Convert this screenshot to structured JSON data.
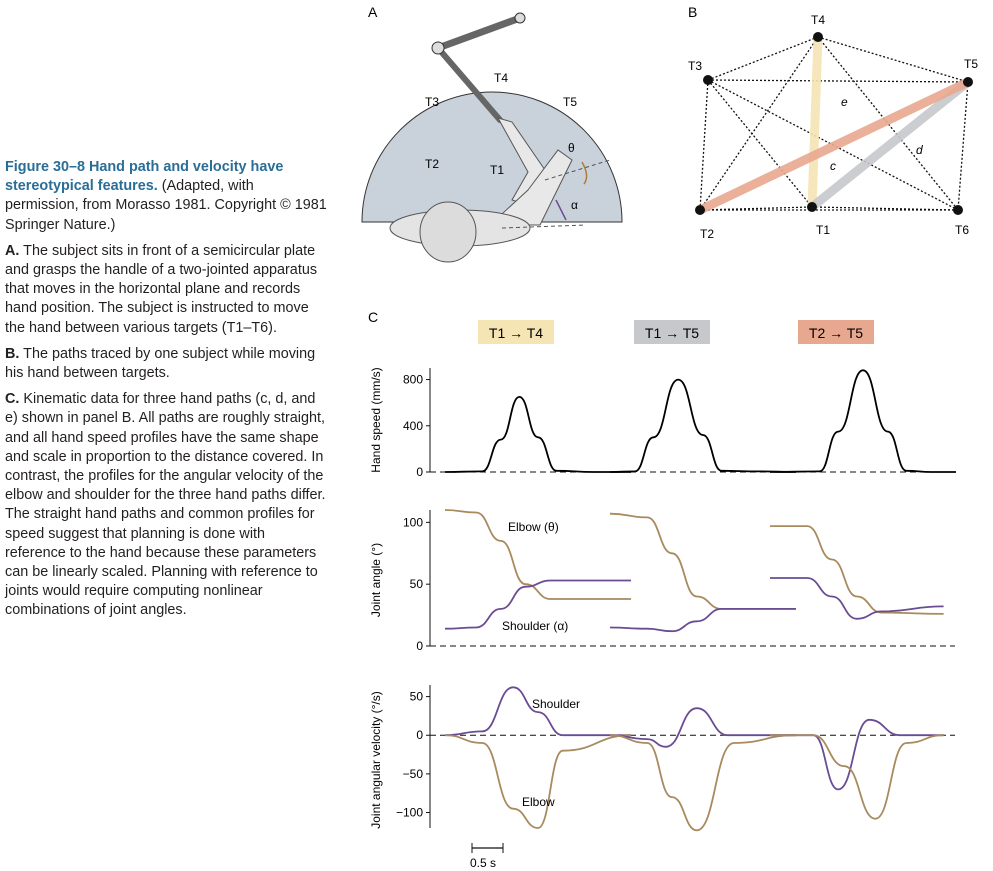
{
  "caption": {
    "figure_number": "Figure 30–8",
    "title": "Hand path and velocity have stereotypical features.",
    "source": "(Adapted, with permission, from Morasso 1981. Copyright © 1981 Springer Nature.)",
    "paragraphs": [
      {
        "label": "A.",
        "text": "The subject sits in front of a semicircular plate and grasps the handle of a two-jointed apparatus that moves in the horizontal plane and records hand position. The subject is instructed to move the hand between various targets (T1–T6)."
      },
      {
        "label": "B.",
        "text": "The paths traced by one subject while moving his hand between targets."
      },
      {
        "label": "C.",
        "text": "Kinematic data for three hand paths (c, d, and e) shown in panel B. All paths are roughly straight, and all hand speed profiles have the same shape and scale in proportion to the distance covered. In contrast, the profiles for the angular velocity of the elbow and shoulder for the three hand paths differ. The straight hand paths and common profiles for speed suggest that planning is done with reference to the hand because these parameters can be linearly scaled. Planning with reference to joints would require computing nonlinear combinations of joint angles."
      }
    ]
  },
  "panel_a": {
    "label": "A",
    "targets": [
      "T4",
      "T3",
      "T5",
      "T2",
      "T1"
    ],
    "angle_elbow": "θ",
    "angle_shoulder": "α"
  },
  "panel_b": {
    "label": "B",
    "targets": [
      "T4",
      "T3",
      "T5",
      "T2",
      "T1",
      "T6"
    ],
    "path_labels": [
      "c",
      "d",
      "e"
    ]
  },
  "panel_c": {
    "label": "C",
    "movements": [
      "T1 → T4",
      "T1 → T5",
      "T2 → T5"
    ],
    "movement_colors": [
      "#f5e4b4",
      "#c7c8cc",
      "#e8a88f"
    ],
    "series_colors": {
      "speed": "#000000",
      "elbow": "#a88a5e",
      "shoulder": "#6a4c93"
    },
    "scale_bar": "0.5 s",
    "rows": [
      {
        "ylabel": "Hand speed (mm/s)",
        "ticks": [
          0,
          400,
          800
        ],
        "ylim": [
          0,
          900
        ]
      },
      {
        "ylabel": "Joint angle (°)",
        "ticks": [
          0,
          50,
          100
        ],
        "ylim": [
          0,
          110
        ],
        "labels": [
          "Elbow (θ)",
          "Shoulder (α)"
        ]
      },
      {
        "ylabel": "Joint angular velocity (°/s)",
        "ticks": [
          50,
          0,
          -50,
          -100
        ],
        "ylim": [
          -120,
          65
        ],
        "labels": [
          "Shoulder",
          "Elbow"
        ]
      }
    ]
  },
  "chart_data": [
    {
      "type": "line",
      "xlabel": "",
      "ylabel": "Hand speed (mm/s)",
      "x_unit": "s",
      "ylim": [
        0,
        900
      ],
      "panels": [
        {
          "movement": "T1 → T4",
          "series": [
            {
              "name": "",
              "x": [
                0,
                0.3,
                0.45,
                0.6,
                0.75,
                0.9,
                1.2,
                1.5
              ],
              "y": [
                0,
                5,
                280,
                650,
                300,
                10,
                0,
                0
              ]
            }
          ]
        },
        {
          "movement": "T1 → T5",
          "series": [
            {
              "name": "",
              "x": [
                0,
                0.2,
                0.35,
                0.55,
                0.75,
                0.9,
                1.2,
                1.5
              ],
              "y": [
                0,
                5,
                300,
                800,
                320,
                10,
                5,
                0
              ]
            }
          ]
        },
        {
          "movement": "T2 → T5",
          "series": [
            {
              "name": "",
              "x": [
                0,
                0.4,
                0.55,
                0.75,
                0.95,
                1.1,
                1.3,
                1.5
              ],
              "y": [
                0,
                5,
                350,
                880,
                350,
                10,
                0,
                0
              ]
            }
          ]
        }
      ]
    },
    {
      "type": "line",
      "xlabel": "",
      "ylabel": "Joint angle (°)",
      "x_unit": "s",
      "ylim": [
        0,
        110
      ],
      "panels": [
        {
          "movement": "T1 → T4",
          "series": [
            {
              "name": "Elbow (θ)",
              "x": [
                0,
                0.25,
                0.45,
                0.65,
                0.85,
                1.5
              ],
              "y": [
                110,
                108,
                85,
                50,
                38,
                38
              ]
            },
            {
              "name": "Shoulder (α)",
              "x": [
                0,
                0.25,
                0.45,
                0.65,
                0.85,
                1.5
              ],
              "y": [
                14,
                15,
                30,
                48,
                53,
                53
              ]
            }
          ]
        },
        {
          "movement": "T1 → T5",
          "series": [
            {
              "name": "Elbow (θ)",
              "x": [
                0,
                0.3,
                0.5,
                0.7,
                0.9,
                1.5
              ],
              "y": [
                107,
                104,
                75,
                40,
                30,
                30
              ]
            },
            {
              "name": "Shoulder (α)",
              "x": [
                0,
                0.3,
                0.5,
                0.7,
                0.9,
                1.5
              ],
              "y": [
                15,
                14,
                12,
                20,
                30,
                30
              ]
            }
          ]
        },
        {
          "movement": "T2 → T5",
          "series": [
            {
              "name": "Elbow (θ)",
              "x": [
                0,
                0.3,
                0.5,
                0.7,
                0.9,
                1.4
              ],
              "y": [
                97,
                97,
                70,
                40,
                27,
                26
              ]
            },
            {
              "name": "Shoulder (α)",
              "x": [
                0,
                0.3,
                0.5,
                0.7,
                0.9,
                1.4
              ],
              "y": [
                55,
                55,
                40,
                22,
                28,
                32
              ]
            }
          ]
        }
      ]
    },
    {
      "type": "line",
      "xlabel": "",
      "ylabel": "Joint angular velocity (°/s)",
      "x_unit": "s",
      "ylim": [
        -120,
        65
      ],
      "panels": [
        {
          "movement": "T1 → T4",
          "series": [
            {
              "name": "Shoulder",
              "x": [
                0,
                0.3,
                0.55,
                0.75,
                0.95,
                1.5
              ],
              "y": [
                0,
                5,
                62,
                30,
                0,
                0
              ]
            },
            {
              "name": "Elbow",
              "x": [
                0,
                0.3,
                0.55,
                0.75,
                0.95,
                1.5
              ],
              "y": [
                0,
                -10,
                -95,
                -120,
                -20,
                0
              ]
            }
          ]
        },
        {
          "movement": "T1 → T5",
          "series": [
            {
              "name": "Shoulder",
              "x": [
                0,
                0.3,
                0.45,
                0.7,
                0.95,
                1.5
              ],
              "y": [
                0,
                -5,
                -15,
                35,
                0,
                0
              ]
            },
            {
              "name": "Elbow",
              "x": [
                0,
                0.3,
                0.5,
                0.7,
                1.0,
                1.5
              ],
              "y": [
                0,
                -10,
                -80,
                -123,
                -10,
                0
              ]
            }
          ]
        },
        {
          "movement": "T2 → T5",
          "series": [
            {
              "name": "Shoulder",
              "x": [
                0,
                0.35,
                0.55,
                0.8,
                1.05,
                1.4
              ],
              "y": [
                0,
                0,
                -70,
                20,
                0,
                0
              ]
            },
            {
              "name": "Elbow",
              "x": [
                0,
                0.35,
                0.6,
                0.85,
                1.1,
                1.4
              ],
              "y": [
                0,
                0,
                -40,
                -108,
                -10,
                0
              ]
            }
          ]
        }
      ]
    }
  ]
}
